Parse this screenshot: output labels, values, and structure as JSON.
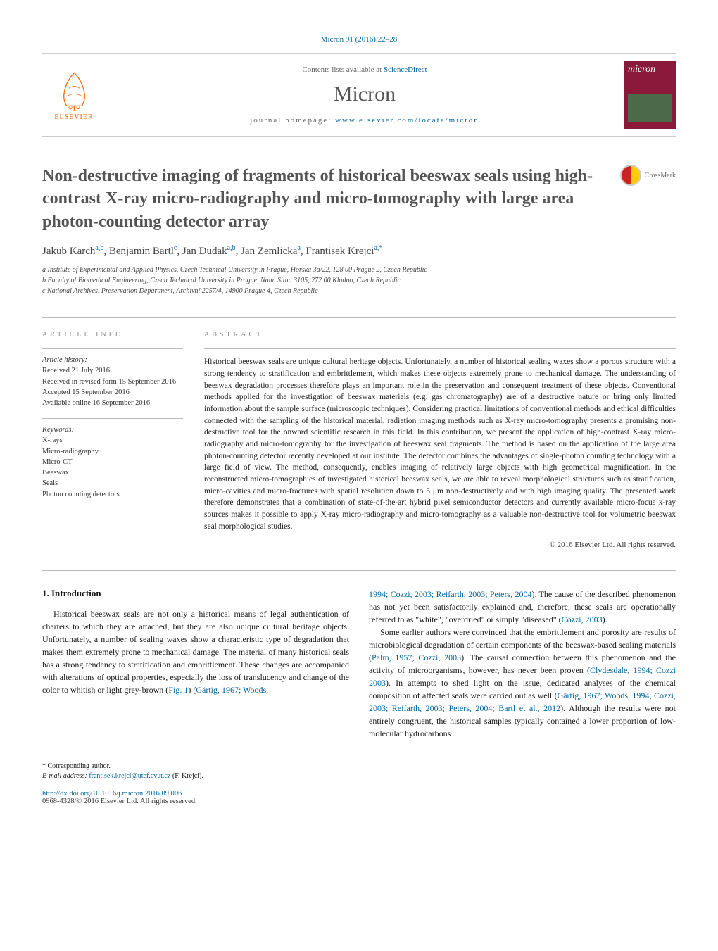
{
  "citation": "Micron 91 (2016) 22–28",
  "header": {
    "contents_prefix": "Contents lists available at ",
    "contents_link": "ScienceDirect",
    "journal_name": "Micron",
    "homepage_prefix": "journal homepage: ",
    "homepage_url": "www.elsevier.com/locate/micron",
    "publisher": "ELSEVIER",
    "cover_title": "micron"
  },
  "crossmark": "CrossMark",
  "title": "Non-destructive imaging of fragments of historical beeswax seals using high-contrast X-ray micro-radiography and micro-tomography with large area photon-counting detector array",
  "authors_html": "Jakub Karch<sup>a,b</sup>, Benjamin Bartl<sup>c</sup>, Jan Dudak<sup>a,b</sup>, Jan Zemlicka<sup>a</sup>, Frantisek Krejci<sup>a,*</sup>",
  "affiliations": [
    "a Institute of Experimental and Applied Physics, Czech Technical University in Prague, Horska 3a/22, 128 00 Prague 2, Czech Republic",
    "b Faculty of Biomedical Engineering, Czech Technical University in Prague, Nam. Sitna 3105, 272 00 Kladno, Czech Republic",
    "c National Archives, Preservation Department, Archivní 2257/4, 14900 Prague 4, Czech Republic"
  ],
  "article_info": {
    "label": "ARTICLE INFO",
    "history_label": "Article history:",
    "history": [
      "Received 21 July 2016",
      "Received in revised form 15 September 2016",
      "Accepted 15 September 2016",
      "Available online 16 September 2016"
    ],
    "keywords_label": "Keywords:",
    "keywords": [
      "X-rays",
      "Micro-radiography",
      "Micro-CT",
      "Beeswax",
      "Seals",
      "Photon counting detectors"
    ]
  },
  "abstract": {
    "label": "ABSTRACT",
    "text": "Historical beeswax seals are unique cultural heritage objects. Unfortunately, a number of historical sealing waxes show a porous structure with a strong tendency to stratification and embrittlement, which makes these objects extremely prone to mechanical damage. The understanding of beeswax degradation processes therefore plays an important role in the preservation and consequent treatment of these objects. Conventional methods applied for the investigation of beeswax materials (e.g. gas chromatography) are of a destructive nature or bring only limited information about the sample surface (microscopic techniques). Considering practical limitations of conventional methods and ethical difficulties connected with the sampling of the historical material, radiation imaging methods such as X-ray micro-tomography presents a promising non-destructive tool for the onward scientific research in this field. In this contribution, we present the application of high-contrast X-ray micro-radiography and micro-tomography for the investigation of beeswax seal fragments. The method is based on the application of the large area photon-counting detector recently developed at our institute. The detector combines the advantages of single-photon counting technology with a large field of view. The method, consequently, enables imaging of relatively large objects with high geometrical magnification. In the reconstructed micro-tomographies of investigated historical beeswax seals, we are able to reveal morphological structures such as stratification, micro-cavities and micro-fractures with spatial resolution down to 5 μm non-destructively and with high imaging quality. The presented work therefore demonstrates that a combination of state-of-the-art hybrid pixel semiconductor detectors and currently available micro-focus x-ray sources makes it possible to apply X-ray micro-radiography and micro-tomography as a valuable non-destructive tool for volumetric beeswax seal morphological studies.",
    "copyright": "© 2016 Elsevier Ltd. All rights reserved."
  },
  "body": {
    "section_heading": "1. Introduction",
    "col1_p1_a": "Historical beeswax seals are not only a historical means of legal authentication of charters to which they are attached, but they are also unique cultural heritage objects. Unfortunately, a number of sealing waxes show a characteristic type of degradation that makes them extremely prone to mechanical damage. The material of many historical seals has a strong tendency to stratification and embrittlement. These changes are accompanied with alterations of optical properties, especially the loss of translucency and change of the color to whitish or light grey-brown (",
    "col1_ref1": "Fig. 1",
    "col1_p1_b": ") (",
    "col1_ref2": "Gärtig, 1967; Woods,",
    "col2_ref1": "1994; Cozzi, 2003; Reifarth, 2003; Peters, 2004",
    "col2_p1_a": "). The cause of the described phenomenon has not yet been satisfactorily explained and, therefore, these seals are operationally referred to as \"white\", \"overdried\" or simply \"diseased\" (",
    "col2_ref2": "Cozzi, 2003",
    "col2_p1_b": ").",
    "col2_p2_a": "Some earlier authors were convinced that the embrittlement and porosity are results of microbiological degradation of certain components of the beeswax-based sealing materials (",
    "col2_ref3": "Palm, 1957; Cozzi, 2003",
    "col2_p2_b": "). The causal connection between this phenomenon and the activity of microorganisms, however, has never been proven (",
    "col2_ref4": "Clydesdale, 1994; Cozzi 2003",
    "col2_p2_c": "). In attempts to shed light on the issue, dedicated analyses of the chemical composition of affected seals were carried out as well (",
    "col2_ref5": "Gärtig, 1967; Woods, 1994; Cozzi, 2003; Reifarth, 2003; Peters, 2004; Bartl et al., 2012",
    "col2_p2_d": "). Although the results were not entirely congruent, the historical samples typically contained a lower proportion of low-molecular hydrocarbons"
  },
  "footnotes": {
    "corr": "* Corresponding author.",
    "email_label": "E-mail address: ",
    "email": "frantisek.krejci@utef.cvut.cz",
    "email_suffix": " (F. Krejci)."
  },
  "doi": {
    "url": "http://dx.doi.org/10.1016/j.micron.2016.09.006",
    "issn_line": "0968-4328/© 2016 Elsevier Ltd. All rights reserved."
  },
  "colors": {
    "link": "#0066a1",
    "elsevier_orange": "#ff6600",
    "cover_bg": "#8b1a3a",
    "text": "#1a1a1a",
    "heading_gray": "#545454",
    "border": "#bbbbbb"
  }
}
